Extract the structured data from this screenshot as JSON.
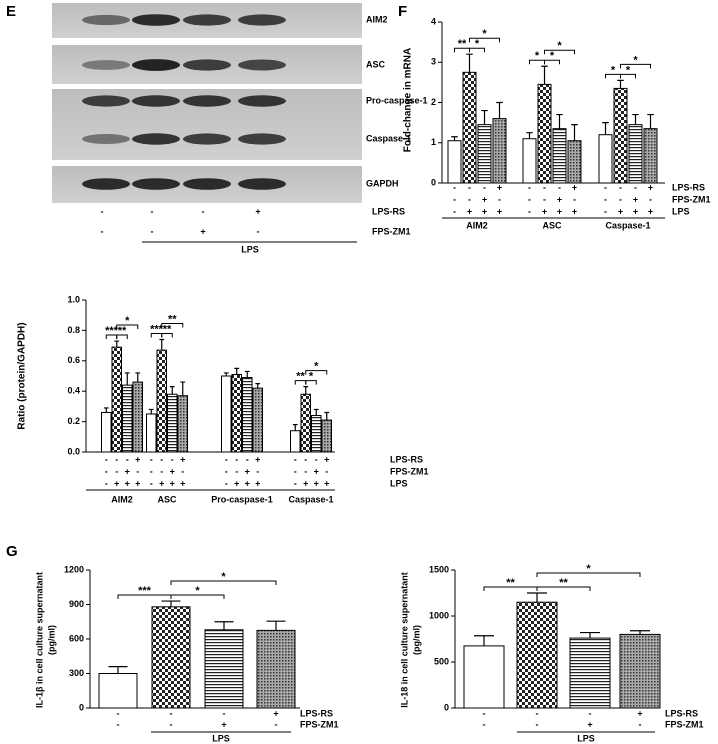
{
  "panel_labels": [
    "E",
    "F",
    "G"
  ],
  "blot": {
    "bands": [
      "AIM2",
      "ASC",
      "Pro-caspase-1",
      "Caspase-1",
      "GAPDH"
    ],
    "treatments": [
      {
        "name": "LPS-RS",
        "signs": [
          "-",
          "-",
          "-",
          "+"
        ]
      },
      {
        "name": "FPS-ZM1",
        "signs": [
          "-",
          "-",
          "+",
          "-"
        ]
      }
    ],
    "span_label": "LPS",
    "span": [
      1,
      3
    ]
  },
  "chart_data": [
    {
      "type": "bar",
      "ylabel": "Fold-change in mRNA",
      "ylim": [
        0,
        4
      ],
      "yticks": [
        0,
        1,
        2,
        3,
        4
      ],
      "categories": [
        "AIM2",
        "ASC",
        "Caspase-1"
      ],
      "series": [
        {
          "pattern": "white",
          "values": [
            1.05,
            1.1,
            1.2
          ],
          "errors": [
            0.1,
            0.15,
            0.3
          ]
        },
        {
          "pattern": "checker",
          "values": [
            2.75,
            2.45,
            2.35
          ],
          "errors": [
            0.45,
            0.45,
            0.2
          ]
        },
        {
          "pattern": "hstripe",
          "values": [
            1.45,
            1.35,
            1.45
          ],
          "errors": [
            0.35,
            0.35,
            0.25
          ]
        },
        {
          "pattern": "crosshatch",
          "values": [
            1.6,
            1.05,
            1.35
          ],
          "errors": [
            0.4,
            0.4,
            0.35
          ]
        }
      ],
      "treatments": [
        {
          "name": "LPS-RS",
          "signs": [
            "-",
            "-",
            "-",
            "+"
          ]
        },
        {
          "name": "FPS-ZM1",
          "signs": [
            "-",
            "-",
            "+",
            "-"
          ]
        },
        {
          "name": "LPS",
          "signs": [
            "-",
            "+",
            "+",
            "+"
          ]
        }
      ],
      "annotations": [
        {
          "group": 0,
          "from": 0,
          "to": 1,
          "text": "**"
        },
        {
          "group": 0,
          "from": 1,
          "to": 2,
          "text": "*"
        },
        {
          "group": 0,
          "from": 1,
          "to": 3,
          "text": "*"
        },
        {
          "group": 1,
          "from": 0,
          "to": 1,
          "text": "*"
        },
        {
          "group": 1,
          "from": 1,
          "to": 2,
          "text": "*"
        },
        {
          "group": 1,
          "from": 1,
          "to": 3,
          "text": "*"
        },
        {
          "group": 2,
          "from": 0,
          "to": 1,
          "text": "*"
        },
        {
          "group": 2,
          "from": 1,
          "to": 2,
          "text": "*"
        },
        {
          "group": 2,
          "from": 1,
          "to": 3,
          "text": "*"
        }
      ]
    },
    {
      "type": "bar",
      "ylabel": "Ratio (protein/GAPDH)",
      "ylim": [
        0,
        1
      ],
      "yticks": [
        {
          "value": 0,
          "label": "0.0"
        },
        {
          "value": 0.2,
          "label": "0.2"
        },
        {
          "value": 0.4,
          "label": "0.4"
        },
        {
          "value": 0.6,
          "label": "0.6"
        },
        {
          "value": 0.8,
          "label": "0.8"
        },
        {
          "value": 1,
          "label": "1.0"
        }
      ],
      "categories": [
        "AIM2",
        "ASC",
        "Pro-caspase-1",
        "Caspase-1"
      ],
      "series": [
        {
          "pattern": "white",
          "values": [
            0.26,
            0.25,
            0.5,
            0.14
          ],
          "errors": [
            0.03,
            0.03,
            0.02,
            0.04
          ]
        },
        {
          "pattern": "checker",
          "values": [
            0.69,
            0.67,
            0.51,
            0.38
          ],
          "errors": [
            0.04,
            0.07,
            0.04,
            0.05
          ]
        },
        {
          "pattern": "hstripe",
          "values": [
            0.44,
            0.38,
            0.49,
            0.24
          ],
          "errors": [
            0.08,
            0.05,
            0.04,
            0.04
          ]
        },
        {
          "pattern": "crosshatch",
          "values": [
            0.46,
            0.37,
            0.42,
            0.21
          ],
          "errors": [
            0.06,
            0.09,
            0.03,
            0.05
          ]
        }
      ],
      "treatments": [
        {
          "name": "LPS-RS",
          "signs": [
            "-",
            "-",
            "-",
            "+"
          ]
        },
        {
          "name": "FPS-ZM1",
          "signs": [
            "-",
            "-",
            "+",
            "-"
          ]
        },
        {
          "name": "LPS",
          "signs": [
            "-",
            "+",
            "+",
            "+"
          ]
        }
      ],
      "annotations": [
        {
          "group": 0,
          "from": 0,
          "to": 1,
          "text": "***"
        },
        {
          "group": 0,
          "from": 1,
          "to": 2,
          "text": "**"
        },
        {
          "group": 0,
          "from": 1,
          "to": 3,
          "text": "*"
        },
        {
          "group": 1,
          "from": 0,
          "to": 1,
          "text": "***"
        },
        {
          "group": 1,
          "from": 1,
          "to": 2,
          "text": "**"
        },
        {
          "group": 1,
          "from": 1,
          "to": 3,
          "text": "**"
        },
        {
          "group": 3,
          "from": 0,
          "to": 1,
          "text": "**"
        },
        {
          "group": 3,
          "from": 1,
          "to": 2,
          "text": "*"
        },
        {
          "group": 3,
          "from": 1,
          "to": 3,
          "text": "*"
        }
      ]
    },
    {
      "type": "bar",
      "ylabel": [
        "IL-1β in cell culture supernatant",
        "(pg/ml)"
      ],
      "ylim": [
        0,
        1200
      ],
      "yticks": [
        0,
        300,
        600,
        900,
        1200
      ],
      "values": [
        300,
        880,
        680,
        675
      ],
      "errors": [
        60,
        50,
        70,
        80
      ],
      "patterns": [
        "white",
        "checker",
        "hstripe",
        "crosshatch"
      ],
      "treatments": [
        {
          "name": "LPS-RS",
          "signs": [
            "-",
            "-",
            "-",
            "+"
          ]
        },
        {
          "name": "FPS-ZM1",
          "signs": [
            "-",
            "-",
            "+",
            "-"
          ]
        }
      ],
      "span_label": "LPS",
      "span": [
        1,
        3
      ],
      "annotations": [
        {
          "from": 0,
          "to": 1,
          "text": "***"
        },
        {
          "from": 1,
          "to": 2,
          "text": "*"
        },
        {
          "from": 1,
          "to": 3,
          "text": "*"
        }
      ]
    },
    {
      "type": "bar",
      "ylabel": [
        "IL-18 in cell culture supernatant",
        "(pg/ml)"
      ],
      "ylim": [
        0,
        1500
      ],
      "yticks": [
        0,
        500,
        1000,
        1500
      ],
      "values": [
        675,
        1150,
        760,
        800
      ],
      "errors": [
        110,
        100,
        60,
        40
      ],
      "patterns": [
        "white",
        "checker",
        "hstripe",
        "crosshatch"
      ],
      "treatments": [
        {
          "name": "LPS-RS",
          "signs": [
            "-",
            "-",
            "-",
            "+"
          ]
        },
        {
          "name": "FPS-ZM1",
          "signs": [
            "-",
            "-",
            "+",
            "-"
          ]
        }
      ],
      "span_label": "LPS",
      "span": [
        1,
        3
      ],
      "annotations": [
        {
          "from": 0,
          "to": 1,
          "text": "**"
        },
        {
          "from": 1,
          "to": 2,
          "text": "**"
        },
        {
          "from": 1,
          "to": 3,
          "text": "*"
        }
      ]
    }
  ]
}
